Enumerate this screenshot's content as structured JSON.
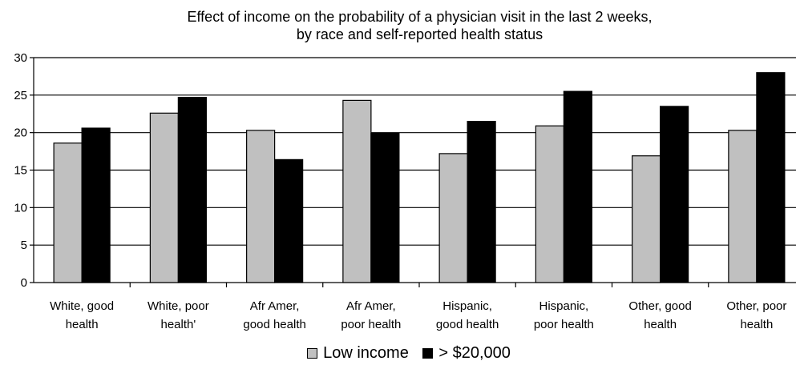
{
  "chart_data": {
    "type": "bar",
    "title_lines": [
      "Effect of income on the probability of a physician visit in the last 2 weeks,",
      "by race and self-reported health status"
    ],
    "xlabel": "",
    "ylabel": "",
    "ylim": [
      0,
      30
    ],
    "yticks": [
      0,
      5,
      10,
      15,
      20,
      25,
      30
    ],
    "grid": true,
    "legend_position": "bottom",
    "categories": [
      [
        "White, good",
        "health"
      ],
      [
        "White, poor",
        "health'"
      ],
      [
        "Afr Amer,",
        "good health"
      ],
      [
        "Afr Amer,",
        "poor health"
      ],
      [
        "Hispanic,",
        "good health"
      ],
      [
        "Hispanic,",
        "poor health"
      ],
      [
        "Other, good",
        "health"
      ],
      [
        "Other, poor",
        "health"
      ]
    ],
    "series": [
      {
        "name": "Low income",
        "color": "#c0c0c0",
        "values": [
          18.6,
          22.6,
          20.3,
          24.3,
          17.2,
          20.9,
          16.9,
          20.3
        ]
      },
      {
        "name": "> $20,000",
        "color": "#000000",
        "values": [
          20.6,
          24.7,
          16.4,
          19.9,
          21.5,
          25.5,
          23.5,
          28.0
        ]
      }
    ]
  }
}
